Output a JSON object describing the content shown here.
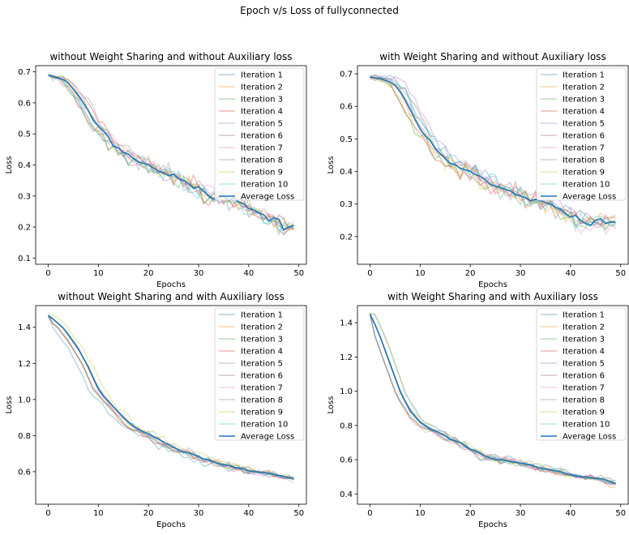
{
  "figure_title": "Epoch v/s Loss of fullyconnected",
  "legend_labels": [
    "Iteration 1",
    "Iteration 2",
    "Iteration 3",
    "Iteration 4",
    "Iteration 5",
    "Iteration 6",
    "Iteration 7",
    "Iteration 8",
    "Iteration 9",
    "Iteration 10",
    "Average Loss"
  ],
  "series_colors": [
    "#1f77b4",
    "#ff7f0e",
    "#2ca02c",
    "#d62728",
    "#9467bd",
    "#8c564b",
    "#e377c2",
    "#7f7f7f",
    "#bcbd22",
    "#17becf",
    "#1f77b4"
  ],
  "chart_data": [
    {
      "type": "line",
      "title": "without Weight Sharing and without Auxiliary loss",
      "xlabel": "Epochs",
      "ylabel": "Loss",
      "xlim": [
        -2.5,
        51.5
      ],
      "ylim": [
        0.08,
        0.72
      ],
      "xticks": [
        0,
        10,
        20,
        30,
        40,
        50
      ],
      "yticks": [
        0.1,
        0.2,
        0.3,
        0.4,
        0.5,
        0.6,
        0.7
      ],
      "ytick_labels": [
        "0.1",
        "0.2",
        "0.3",
        "0.4",
        "0.5",
        "0.6",
        "0.7"
      ],
      "legend_position": "upper right",
      "avg": [
        0.69,
        0.685,
        0.68,
        0.675,
        0.665,
        0.645,
        0.625,
        0.6,
        0.575,
        0.545,
        0.525,
        0.51,
        0.49,
        0.46,
        0.455,
        0.44,
        0.435,
        0.42,
        0.41,
        0.405,
        0.4,
        0.39,
        0.38,
        0.375,
        0.365,
        0.37,
        0.355,
        0.35,
        0.34,
        0.325,
        0.33,
        0.315,
        0.3,
        0.29,
        0.295,
        0.3,
        0.285,
        0.295,
        0.28,
        0.275,
        0.26,
        0.255,
        0.245,
        0.24,
        0.22,
        0.23,
        0.225,
        0.19,
        0.2,
        0.205
      ],
      "noise": 0.04,
      "noise_growth": 0.6,
      "spread": 0.05
    },
    {
      "type": "line",
      "title": "with Weight Sharing and without Auxiliary loss",
      "xlabel": "Epochs",
      "ylabel": "Loss",
      "xlim": [
        -2.5,
        51.5
      ],
      "ylim": [
        0.115,
        0.725
      ],
      "xticks": [
        0,
        10,
        20,
        30,
        40,
        50
      ],
      "yticks": [
        0.2,
        0.3,
        0.4,
        0.5,
        0.6,
        0.7
      ],
      "ytick_labels": [
        "0.2",
        "0.3",
        "0.4",
        "0.5",
        "0.6",
        "0.7"
      ],
      "legend_position": "upper right",
      "avg": [
        0.69,
        0.688,
        0.685,
        0.68,
        0.675,
        0.665,
        0.645,
        0.62,
        0.59,
        0.56,
        0.53,
        0.51,
        0.495,
        0.47,
        0.455,
        0.44,
        0.425,
        0.42,
        0.41,
        0.405,
        0.4,
        0.39,
        0.385,
        0.375,
        0.36,
        0.355,
        0.35,
        0.345,
        0.34,
        0.33,
        0.325,
        0.32,
        0.31,
        0.315,
        0.31,
        0.305,
        0.3,
        0.29,
        0.285,
        0.27,
        0.26,
        0.265,
        0.25,
        0.24,
        0.235,
        0.25,
        0.255,
        0.24,
        0.245,
        0.245
      ],
      "noise": 0.045,
      "noise_growth": 0.5,
      "spread": 0.05
    },
    {
      "type": "line",
      "title": "without Weight Sharing and with Auxiliary loss",
      "xlabel": "Epochs",
      "ylabel": "Loss",
      "xlim": [
        -2.5,
        51.5
      ],
      "ylim": [
        0.42,
        1.52
      ],
      "xticks": [
        0,
        10,
        20,
        30,
        40,
        50
      ],
      "yticks": [
        0.6,
        0.8,
        1.0,
        1.2,
        1.4
      ],
      "ytick_labels": [
        "0.6",
        "0.8",
        "1.0",
        "1.2",
        "1.4"
      ],
      "legend_position": "upper right",
      "avg": [
        1.465,
        1.445,
        1.42,
        1.395,
        1.36,
        1.32,
        1.28,
        1.23,
        1.18,
        1.12,
        1.06,
        1.02,
        0.99,
        0.96,
        0.93,
        0.9,
        0.875,
        0.85,
        0.835,
        0.82,
        0.81,
        0.795,
        0.78,
        0.765,
        0.75,
        0.735,
        0.72,
        0.71,
        0.705,
        0.695,
        0.685,
        0.67,
        0.665,
        0.655,
        0.645,
        0.64,
        0.635,
        0.625,
        0.62,
        0.615,
        0.605,
        0.6,
        0.598,
        0.595,
        0.59,
        0.585,
        0.58,
        0.575,
        0.565,
        0.565
      ],
      "noise": 0.03,
      "noise_growth": 0.5,
      "spread": 0.04
    },
    {
      "type": "line",
      "title": "with Weight Sharing and with Auxiliary loss",
      "xlabel": "Epochs",
      "ylabel": "Loss",
      "xlim": [
        -2.5,
        51.5
      ],
      "ylim": [
        0.34,
        1.5
      ],
      "xticks": [
        0,
        10,
        20,
        30,
        40,
        50
      ],
      "yticks": [
        0.4,
        0.6,
        0.8,
        1.0,
        1.2,
        1.4
      ],
      "ytick_labels": [
        "0.4",
        "0.6",
        "0.8",
        "1.0",
        "1.2",
        "1.4"
      ],
      "legend_position": "upper right",
      "avg": [
        1.45,
        1.39,
        1.32,
        1.24,
        1.16,
        1.08,
        1.0,
        0.94,
        0.89,
        0.85,
        0.82,
        0.8,
        0.78,
        0.77,
        0.755,
        0.74,
        0.72,
        0.71,
        0.7,
        0.68,
        0.66,
        0.65,
        0.635,
        0.62,
        0.61,
        0.6,
        0.6,
        0.595,
        0.59,
        0.585,
        0.58,
        0.575,
        0.57,
        0.56,
        0.55,
        0.545,
        0.54,
        0.535,
        0.53,
        0.52,
        0.51,
        0.505,
        0.5,
        0.5,
        0.495,
        0.49,
        0.49,
        0.48,
        0.47,
        0.46
      ],
      "noise": 0.03,
      "noise_growth": 0.5,
      "spread": 0.04
    }
  ]
}
